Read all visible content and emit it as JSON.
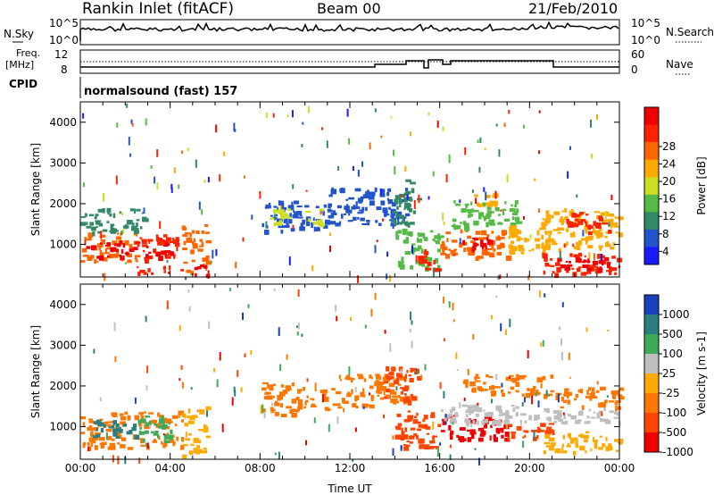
{
  "header": {
    "station": "Rankin Inlet (fitACF)",
    "beam": "Beam 00",
    "date": "21/Feb/2010"
  },
  "noise_panel": {
    "left_label": "N.Sky",
    "left_ticks": [
      "10^5",
      "10^0"
    ],
    "right_label": "N.Search",
    "right_ticks": [
      "10^5",
      "10^0"
    ]
  },
  "freq_panel": {
    "left_label_line1": "Freq.",
    "left_label_line2": "[MHz]",
    "left_ticks": [
      "12",
      "8"
    ],
    "right_label": "Nave",
    "right_ticks": [
      "60",
      "0"
    ]
  },
  "cpid": {
    "label": "CPID",
    "value": "normalsound (fast) 157"
  },
  "colors": {
    "power": [
      "#1a1aff",
      "#2255cc",
      "#338866",
      "#55bb44",
      "#ccdd22",
      "#ffaa00",
      "#ff6600",
      "#ff2200",
      "#ee0000"
    ],
    "velocity": [
      "#1a3fbf",
      "#2d7f7f",
      "#3faa5a",
      "#bfbfbf",
      "#ffaa00",
      "#ff7700",
      "#ff4400",
      "#ee0000"
    ]
  },
  "chart_data": [
    {
      "type": "heatmap",
      "name": "power",
      "ylabel": "Slant Range [km]",
      "yticks": [
        "1000",
        "2000",
        "3000",
        "4000"
      ],
      "ylim": [
        200,
        4500
      ],
      "xlim": [
        0,
        24
      ],
      "colorbar": {
        "label": "Power [dB]",
        "ticks": [
          "4",
          "8",
          "12",
          "16",
          "20",
          "24",
          "28"
        ],
        "range": [
          0,
          30
        ]
      },
      "patches": [
        {
          "t": [
            0.0,
            2.5
          ],
          "r": [
            600,
            1300
          ],
          "level": 6
        },
        {
          "t": [
            0.2,
            2.5
          ],
          "r": [
            700,
            1100
          ],
          "level": 8
        },
        {
          "t": [
            0.0,
            2.8
          ],
          "r": [
            1300,
            1900
          ],
          "level": 2
        },
        {
          "t": [
            2.5,
            4.3
          ],
          "r": [
            600,
            1250
          ],
          "level": 7
        },
        {
          "t": [
            2.8,
            4.0
          ],
          "r": [
            700,
            1050
          ],
          "level": 8
        },
        {
          "t": [
            2.5,
            4.5
          ],
          "r": [
            300,
            500
          ],
          "level": 7
        },
        {
          "t": [
            4.5,
            5.6
          ],
          "r": [
            300,
            1500
          ],
          "level": 6
        },
        {
          "t": [
            5.0,
            5.6
          ],
          "r": [
            250,
            600
          ],
          "level": 8
        },
        {
          "t": [
            8.0,
            9.5
          ],
          "r": [
            1300,
            2100
          ],
          "level": 1
        },
        {
          "t": [
            8.4,
            9.3
          ],
          "r": [
            1450,
            1900
          ],
          "level": 4
        },
        {
          "t": [
            9.5,
            11.0
          ],
          "r": [
            1400,
            2000
          ],
          "level": 1
        },
        {
          "t": [
            10.0,
            10.7
          ],
          "r": [
            1500,
            1900
          ],
          "level": 4
        },
        {
          "t": [
            11.0,
            14.5
          ],
          "r": [
            1500,
            2400
          ],
          "level": 1
        },
        {
          "t": [
            13.8,
            15.0
          ],
          "r": [
            1500,
            2600
          ],
          "level": 2
        },
        {
          "t": [
            14.0,
            16.0
          ],
          "r": [
            400,
            1400
          ],
          "level": 3
        },
        {
          "t": [
            15.0,
            16.0
          ],
          "r": [
            400,
            900
          ],
          "level": 7
        },
        {
          "t": [
            16.0,
            19.0
          ],
          "r": [
            700,
            1400
          ],
          "level": 6
        },
        {
          "t": [
            17.0,
            18.5
          ],
          "r": [
            900,
            1200
          ],
          "level": 8
        },
        {
          "t": [
            16.5,
            19.5
          ],
          "r": [
            1400,
            2100
          ],
          "level": 3
        },
        {
          "t": [
            17.5,
            18.5
          ],
          "r": [
            1900,
            2300
          ],
          "level": 5
        },
        {
          "t": [
            19.0,
            21.0
          ],
          "r": [
            800,
            1500
          ],
          "level": 5
        },
        {
          "t": [
            20.5,
            24.0
          ],
          "r": [
            300,
            800
          ],
          "level": 7
        },
        {
          "t": [
            21.0,
            23.5
          ],
          "r": [
            400,
            700
          ],
          "level": 8
        },
        {
          "t": [
            20.5,
            24.0
          ],
          "r": [
            900,
            1900
          ],
          "level": 5
        },
        {
          "t": [
            21.5,
            23.5
          ],
          "r": [
            1300,
            1800
          ],
          "level": 7
        }
      ]
    },
    {
      "type": "heatmap",
      "name": "velocity",
      "xlabel": "Time UT",
      "ylabel": "Slant Range [km]",
      "xticks": [
        "00:00",
        "04:00",
        "08:00",
        "12:00",
        "16:00",
        "20:00",
        "00:00"
      ],
      "yticks": [
        "1000",
        "2000",
        "3000",
        "4000"
      ],
      "ylim": [
        200,
        4500
      ],
      "xlim": [
        0,
        24
      ],
      "colorbar": {
        "label": "Velocity [m s-1]",
        "ticks": [
          "1000",
          "500",
          "100",
          "25",
          "-25",
          "-100",
          "-500",
          "-1000"
        ],
        "range": [
          -1000,
          1000
        ]
      },
      "patches": [
        {
          "t": [
            0.0,
            4.5
          ],
          "r": [
            500,
            1400
          ],
          "level": 5
        },
        {
          "t": [
            0.5,
            2.5
          ],
          "r": [
            700,
            1200
          ],
          "level": 1
        },
        {
          "t": [
            2.5,
            4.0
          ],
          "r": [
            600,
            1300
          ],
          "level": 2
        },
        {
          "t": [
            4.5,
            5.6
          ],
          "r": [
            300,
            1500
          ],
          "level": 4
        },
        {
          "t": [
            8.0,
            9.5
          ],
          "r": [
            1300,
            2100
          ],
          "level": 5
        },
        {
          "t": [
            9.5,
            11.0
          ],
          "r": [
            1400,
            2000
          ],
          "level": 5
        },
        {
          "t": [
            11.0,
            14.5
          ],
          "r": [
            1500,
            2300
          ],
          "level": 5
        },
        {
          "t": [
            13.5,
            15.0
          ],
          "r": [
            1600,
            2500
          ],
          "level": 6
        },
        {
          "t": [
            14.0,
            16.0
          ],
          "r": [
            500,
            1400
          ],
          "level": 6
        },
        {
          "t": [
            16.0,
            19.0
          ],
          "r": [
            700,
            1300
          ],
          "level": 7
        },
        {
          "t": [
            16.0,
            24.0
          ],
          "r": [
            1100,
            1550
          ],
          "level": 3
        },
        {
          "t": [
            17.0,
            21.0
          ],
          "r": [
            1800,
            2300
          ],
          "level": 5
        },
        {
          "t": [
            19.0,
            21.0
          ],
          "r": [
            700,
            1100
          ],
          "level": 6
        },
        {
          "t": [
            20.5,
            24.0
          ],
          "r": [
            400,
            900
          ],
          "level": 4
        },
        {
          "t": [
            21.0,
            24.0
          ],
          "r": [
            1500,
            2000
          ],
          "level": 5
        }
      ]
    }
  ]
}
